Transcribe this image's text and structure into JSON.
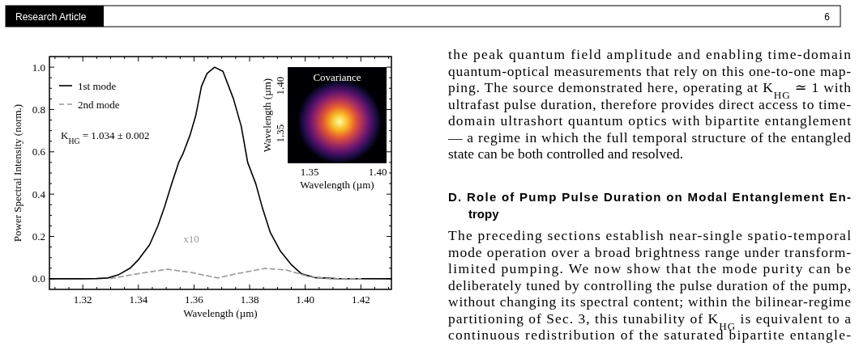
{
  "chart_data": [
    {
      "type": "other",
      "title": "Research Article",
      "annotations": [
        "6"
      ]
    },
    {
      "type": "line",
      "xlabel": "Wavelength (µm)",
      "ylabel": "Power Spectral Intensity (norm.)",
      "legend": "top left",
      "xlim": [
        1.308,
        1.431
      ],
      "ylim": [
        -0.05,
        1.05
      ],
      "xticks": [
        {
          "value": 1.31,
          "label": null
        },
        {
          "value": 1.315,
          "label": null
        },
        {
          "value": 1.32,
          "label": "1.32"
        },
        {
          "value": 1.325,
          "label": null
        },
        {
          "value": 1.33,
          "label": null
        },
        {
          "value": 1.335,
          "label": null
        },
        {
          "value": 1.34,
          "label": "1.34"
        },
        {
          "value": 1.345,
          "label": null
        },
        {
          "value": 1.35,
          "label": null
        },
        {
          "value": 1.355,
          "label": null
        },
        {
          "value": 1.36,
          "label": "1.36"
        },
        {
          "value": 1.365,
          "label": null
        },
        {
          "value": 1.37,
          "label": null
        },
        {
          "value": 1.375,
          "label": null
        },
        {
          "value": 1.38,
          "label": "1.38"
        },
        {
          "value": 1.385,
          "label": null
        },
        {
          "value": 1.39,
          "label": null
        },
        {
          "value": 1.395,
          "label": null
        },
        {
          "value": 1.4,
          "label": "1.40"
        },
        {
          "value": 1.405,
          "label": null
        },
        {
          "value": 1.41,
          "label": null
        },
        {
          "value": 1.415,
          "label": null
        },
        {
          "value": 1.42,
          "label": "1.42"
        },
        {
          "value": 1.425,
          "label": null
        },
        {
          "value": 1.43,
          "label": null
        }
      ],
      "yticks": [
        {
          "value": 0,
          "label": "0.0"
        },
        {
          "value": 0.05,
          "label": null
        },
        {
          "value": 0.1,
          "label": null
        },
        {
          "value": 0.15,
          "label": null
        },
        {
          "value": 0.2,
          "label": "0.2"
        },
        {
          "value": 0.25,
          "label": null
        },
        {
          "value": 0.3,
          "label": null
        },
        {
          "value": 0.35,
          "label": null
        },
        {
          "value": 0.4,
          "label": "0.4"
        },
        {
          "value": 0.45,
          "label": null
        },
        {
          "value": 0.5,
          "label": null
        },
        {
          "value": 0.55,
          "label": null
        },
        {
          "value": 0.6,
          "label": "0.6"
        },
        {
          "value": 0.65,
          "label": null
        },
        {
          "value": 0.7,
          "label": null
        },
        {
          "value": 0.75,
          "label": null
        },
        {
          "value": 0.8,
          "label": "0.8"
        },
        {
          "value": 0.85,
          "label": null
        },
        {
          "value": 0.9,
          "label": null
        },
        {
          "value": 0.95,
          "label": null
        },
        {
          "value": 1,
          "label": "1.0"
        }
      ],
      "annotations": [
        "K$_{HG}$ = 1.034 ± 0.002",
        "x10"
      ],
      "series": [
        {
          "name": "1st mode",
          "color": "#000000",
          "line_style": "solid",
          "x": [
            1.308,
            1.32,
            1.325,
            1.329,
            1.333,
            1.337,
            1.34,
            1.344,
            1.347,
            1.3494,
            1.352,
            1.3545,
            1.356,
            1.3586,
            1.3606,
            1.3627,
            1.3647,
            1.3674,
            1.3704,
            1.3742,
            1.377,
            1.3793,
            1.3822,
            1.3845,
            1.3874,
            1.3911,
            1.3949,
            1.3987,
            1.4034,
            1.411,
            1.431
          ],
          "values": [
            0,
            0,
            0.001,
            0.004,
            0.02,
            0.05,
            0.09,
            0.16,
            0.25,
            0.34,
            0.45,
            0.55,
            0.59,
            0.68,
            0.77,
            0.91,
            0.97,
            1.0,
            0.98,
            0.85,
            0.72,
            0.55,
            0.45,
            0.34,
            0.22,
            0.13,
            0.068,
            0.023,
            0.006,
            0.001,
            0
          ]
        },
        {
          "name": "2nd mode",
          "color": "#999999",
          "line_style": "dashed",
          "x": [
            1.33,
            1.3393,
            1.3505,
            1.3555,
            1.359,
            1.3685,
            1.375,
            1.3855,
            1.393,
            1.4015,
            1.408,
            1.42
          ],
          "values": [
            0.001,
            0.023,
            0.045,
            0.036,
            0.03,
            0.004,
            0.023,
            0.049,
            0.042,
            0.01,
            0.001,
            0
          ]
        }
      ]
    },
    {
      "type": "other",
      "title": "Covariance",
      "xlabel": "Wavelength (µm)",
      "ylabel": "Wavelength (µm)",
      "annotations": [
        "1.35",
        "1.40",
        "1.35",
        "1.40"
      ]
    },
    {
      "type": "other",
      "annotations": [
        "the peak quantum field amplitude and enabling time-domain",
        "quantum-optical measurements that rely on this one-to-one map-",
        "ping. The source demonstrated here, operating at K$_{HG}$ ≃ 1 with",
        "ultrafast pulse duration, therefore provides direct access to time-",
        "domain ultrashort quantum optics with bipartite entanglement",
        "— a regime in which the full temporal structure of the entangled",
        "state can be both controlled and resolved."
      ]
    },
    {
      "type": "other",
      "title": "D. Role of Pump Pulse Duration on Modal Entanglement En-\ntropy",
      "annotations": [
        "The preceding sections establish near-single spatio-temporal",
        "mode operation over a broad brightness range under transform-",
        "limited pumping. We now show that the mode purity can be",
        "deliberately tuned by controlling the pulse duration of the pump,",
        "without changing its spectral content; within the bilinear-regime",
        "partitioning of Sec. 3, this tunability of K$_{HG}$ is equivalent to a",
        "continuous redistribution of the saturated bipartite entangle-"
      ]
    }
  ]
}
